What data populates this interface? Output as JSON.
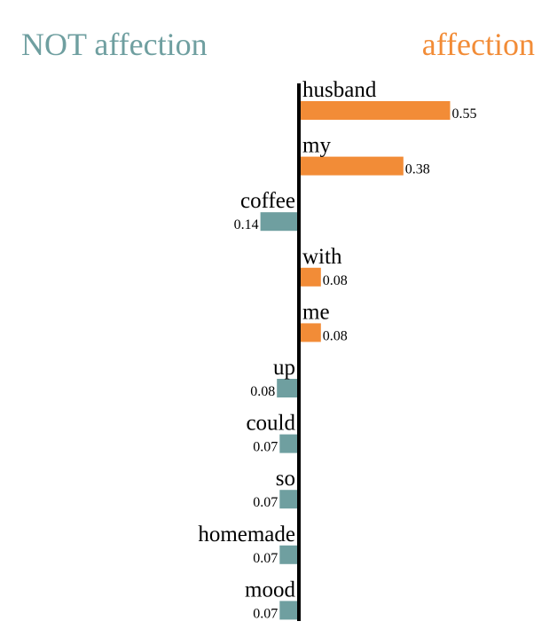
{
  "header": {
    "negative_label": "NOT affection",
    "positive_label": "affection"
  },
  "colors": {
    "negative": "#6f9fa0",
    "positive": "#f28c37",
    "axis": "#000000"
  },
  "chart_data": {
    "type": "bar",
    "orientation": "horizontal",
    "categories": [
      "husband",
      "my",
      "coffee",
      "with",
      "me",
      "up",
      "could",
      "so",
      "homemade",
      "mood"
    ],
    "series": [
      {
        "values": [
          0.55,
          0.38,
          -0.14,
          0.08,
          0.08,
          -0.08,
          -0.07,
          -0.07,
          -0.07,
          -0.07
        ]
      }
    ],
    "value_labels": [
      "0.55",
      "0.38",
      "0.14",
      "0.08",
      "0.08",
      "0.08",
      "0.07",
      "0.07",
      "0.07",
      "0.07"
    ],
    "xlim": [
      -0.14,
      0.55
    ],
    "grid": false,
    "legend": "none"
  }
}
